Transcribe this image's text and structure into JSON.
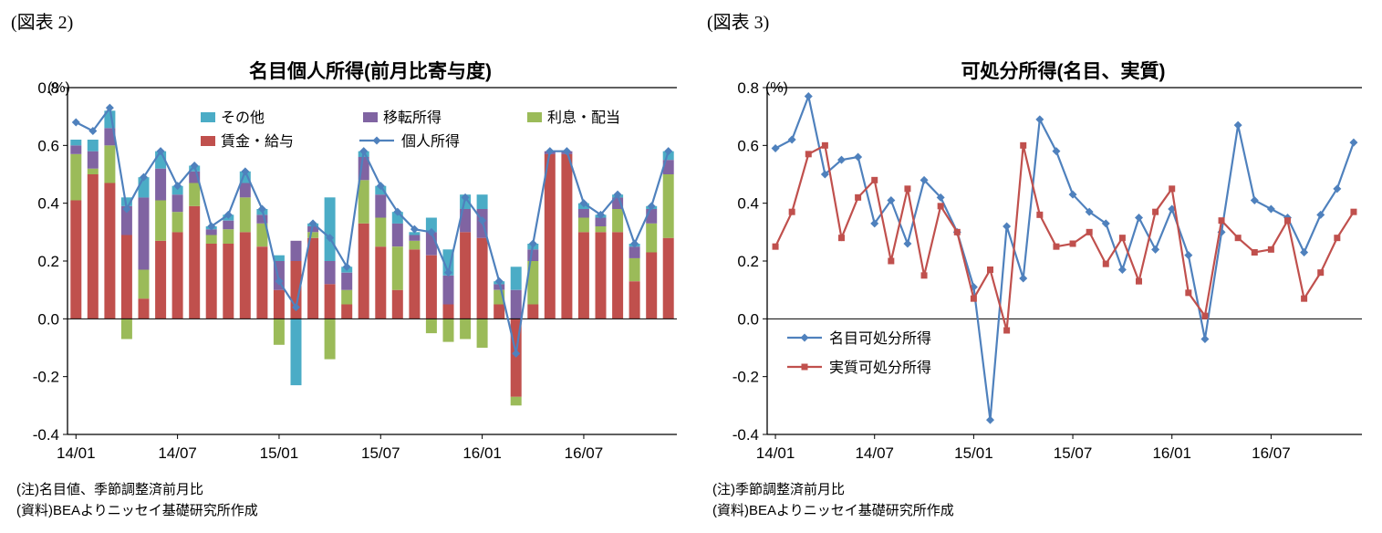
{
  "figure2": {
    "tag": "(図表 2)",
    "title": "名目個人所得(前月比寄与度)",
    "unit": "(%)",
    "notes": [
      "(注)名目値、季節調整済前月比",
      "(資料)BEAよりニッセイ基礎研究所作成"
    ]
  },
  "figure3": {
    "tag": "(図表 3)",
    "title": "可処分所得(名目、実質)",
    "unit": "(%)",
    "notes": [
      "(注)季節調整済前月比",
      "(資料)BEAよりニッセイ基礎研究所作成"
    ]
  },
  "chart_data": [
    {
      "type": "bar",
      "stacked": true,
      "title": "名目個人所得(前月比寄与度)",
      "xlabel": "",
      "ylabel": "(%)",
      "ylim": [
        -0.4,
        0.8
      ],
      "yticks": [
        0.8,
        0.6,
        0.4,
        0.2,
        0.0,
        -0.2,
        -0.4
      ],
      "grid": false,
      "legend_position": "top-inside",
      "categories": [
        "14/01",
        "14/02",
        "14/03",
        "14/04",
        "14/05",
        "14/06",
        "14/07",
        "14/08",
        "14/09",
        "14/10",
        "14/11",
        "14/12",
        "15/01",
        "15/02",
        "15/03",
        "15/04",
        "15/05",
        "15/06",
        "15/07",
        "15/08",
        "15/09",
        "15/10",
        "15/11",
        "15/12",
        "16/01",
        "16/02",
        "16/03",
        "16/04",
        "16/05",
        "16/06",
        "16/07",
        "16/08",
        "16/09",
        "16/10",
        "16/11",
        "16/12"
      ],
      "xtick_labels": [
        "14/01",
        "14/07",
        "15/01",
        "15/07",
        "16/01",
        "16/07"
      ],
      "series": [
        {
          "name": "賃金・給与",
          "kind": "bar",
          "color": "#C0504D",
          "values": [
            0.41,
            0.5,
            0.47,
            0.29,
            0.07,
            0.27,
            0.3,
            0.39,
            0.26,
            0.26,
            0.3,
            0.25,
            0.1,
            0.2,
            0.28,
            0.12,
            0.05,
            0.33,
            0.25,
            0.1,
            0.24,
            0.22,
            0.05,
            0.3,
            0.28,
            0.05,
            -0.27,
            0.05,
            0.57,
            0.57,
            0.3,
            0.3,
            0.3,
            0.13,
            0.23,
            0.28
          ]
        },
        {
          "name": "利息・配当",
          "kind": "bar",
          "color": "#9BBB59",
          "values": [
            0.16,
            0.02,
            0.13,
            -0.07,
            0.1,
            0.14,
            0.07,
            0.08,
            0.03,
            0.05,
            0.12,
            0.08,
            -0.09,
            0.0,
            0.02,
            -0.14,
            0.05,
            0.15,
            0.1,
            0.15,
            0.03,
            -0.05,
            -0.08,
            -0.07,
            -0.1,
            0.05,
            -0.03,
            0.15,
            0.0,
            0.0,
            0.05,
            0.02,
            0.08,
            0.08,
            0.1,
            0.22
          ]
        },
        {
          "name": "移転所得",
          "kind": "bar",
          "color": "#8064A2",
          "values": [
            0.03,
            0.06,
            0.06,
            0.1,
            0.25,
            0.11,
            0.06,
            0.04,
            0.02,
            0.03,
            0.05,
            0.03,
            0.1,
            0.07,
            0.02,
            0.08,
            0.06,
            0.08,
            0.08,
            0.08,
            0.02,
            0.08,
            0.1,
            0.08,
            0.1,
            0.02,
            0.1,
            0.04,
            0.01,
            0.01,
            0.03,
            0.03,
            0.04,
            0.04,
            0.05,
            0.05
          ]
        },
        {
          "name": "その他",
          "kind": "bar",
          "color": "#4BACC6",
          "values": [
            0.02,
            0.04,
            0.06,
            0.03,
            0.07,
            0.06,
            0.03,
            0.02,
            0.01,
            0.02,
            0.04,
            0.02,
            0.02,
            -0.23,
            0.01,
            0.22,
            0.02,
            0.02,
            0.03,
            0.04,
            0.01,
            0.05,
            0.09,
            0.05,
            0.05,
            0.01,
            0.08,
            0.02,
            0.0,
            0.0,
            0.02,
            0.01,
            0.01,
            0.01,
            0.01,
            0.03
          ]
        },
        {
          "name": "個人所得",
          "kind": "line",
          "marker": "diamond",
          "color": "#4F81BD",
          "values": [
            0.68,
            0.65,
            0.73,
            0.38,
            0.49,
            0.58,
            0.46,
            0.53,
            0.32,
            0.36,
            0.51,
            0.38,
            0.13,
            0.04,
            0.33,
            0.28,
            0.18,
            0.58,
            0.46,
            0.37,
            0.31,
            0.3,
            0.16,
            0.42,
            0.34,
            0.13,
            -0.12,
            0.26,
            0.58,
            0.58,
            0.4,
            0.36,
            0.43,
            0.26,
            0.39,
            0.58
          ]
        }
      ]
    },
    {
      "type": "line",
      "title": "可処分所得(名目、実質)",
      "xlabel": "",
      "ylabel": "(%)",
      "ylim": [
        -0.4,
        0.8
      ],
      "yticks": [
        0.8,
        0.6,
        0.4,
        0.2,
        0.0,
        -0.2,
        -0.4
      ],
      "grid": false,
      "legend_position": "lower-left-inside",
      "categories": [
        "14/01",
        "14/02",
        "14/03",
        "14/04",
        "14/05",
        "14/06",
        "14/07",
        "14/08",
        "14/09",
        "14/10",
        "14/11",
        "14/12",
        "15/01",
        "15/02",
        "15/03",
        "15/04",
        "15/05",
        "15/06",
        "15/07",
        "15/08",
        "15/09",
        "15/10",
        "15/11",
        "15/12",
        "16/01",
        "16/02",
        "16/03",
        "16/04",
        "16/05",
        "16/06",
        "16/07",
        "16/08",
        "16/09",
        "16/10",
        "16/11",
        "16/12"
      ],
      "xtick_labels": [
        "14/01",
        "14/07",
        "15/01",
        "15/07",
        "16/01",
        "16/07"
      ],
      "series": [
        {
          "name": "名目可処分所得",
          "kind": "line",
          "marker": "diamond",
          "color": "#4F81BD",
          "values": [
            0.59,
            0.62,
            0.77,
            0.5,
            0.55,
            0.56,
            0.33,
            0.41,
            0.26,
            0.48,
            0.42,
            0.3,
            0.11,
            -0.35,
            0.32,
            0.14,
            0.69,
            0.58,
            0.43,
            0.37,
            0.33,
            0.17,
            0.35,
            0.24,
            0.38,
            0.22,
            -0.07,
            0.3,
            0.67,
            0.41,
            0.38,
            0.35,
            0.23,
            0.36,
            0.45,
            0.61
          ]
        },
        {
          "name": "実質可処分所得",
          "kind": "line",
          "marker": "square",
          "color": "#C0504D",
          "values": [
            0.25,
            0.37,
            0.57,
            0.6,
            0.28,
            0.42,
            0.48,
            0.2,
            0.45,
            0.15,
            0.39,
            0.3,
            0.07,
            0.17,
            -0.04,
            0.6,
            0.36,
            0.25,
            0.26,
            0.3,
            0.19,
            0.28,
            0.13,
            0.37,
            0.45,
            0.09,
            0.01,
            0.34,
            0.28,
            0.23,
            0.24,
            0.34,
            0.07,
            0.16,
            0.28,
            0.37
          ]
        }
      ]
    }
  ]
}
